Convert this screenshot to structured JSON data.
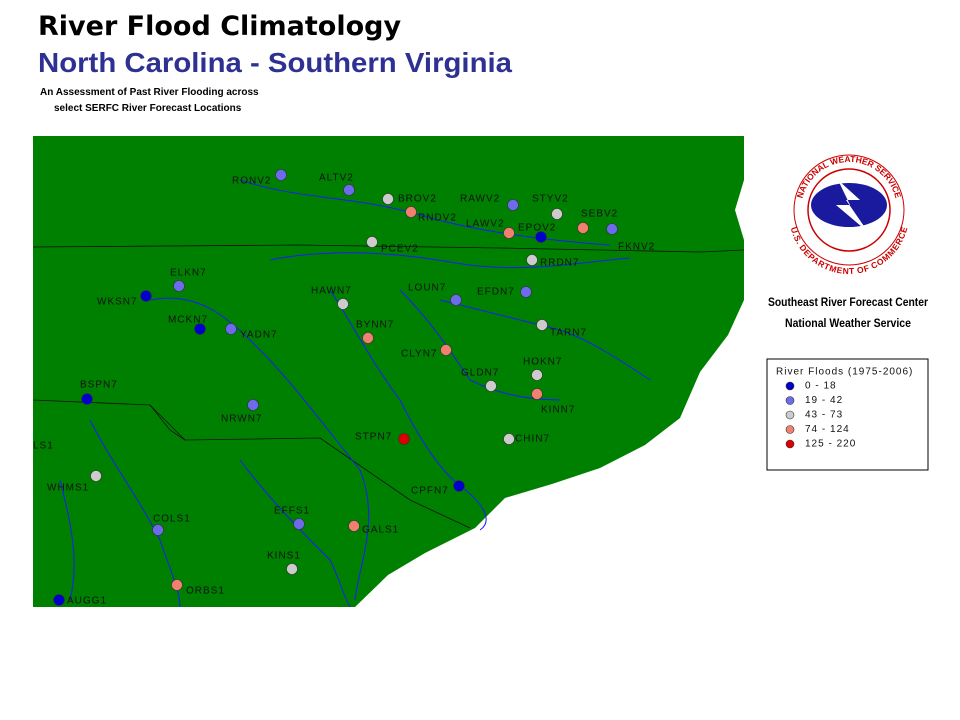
{
  "header": {
    "title": "River Flood Climatology",
    "subtitle": "North Carolina - Southern Virginia",
    "description_line1": "An Assessment of Past River Flooding across",
    "description_line2": "select SERFC River Forecast Locations"
  },
  "logo": {
    "top_text": "NATIONAL WEATHER SERVICE",
    "bottom_text": "U.S. DEPARTMENT OF COMMERCE"
  },
  "center": {
    "line1": "Southeast River Forecast Center",
    "line2": "National Weather Service"
  },
  "legend": {
    "title": "River Floods (1975-2006)",
    "items": [
      {
        "label": "0 - 18",
        "color": "#0000cc"
      },
      {
        "label": "19 - 42",
        "color": "#6b6bec"
      },
      {
        "label": "43 - 73",
        "color": "#cccccc"
      },
      {
        "label": "74 - 124",
        "color": "#f08070"
      },
      {
        "label": "125 - 220",
        "color": "#dd0000"
      }
    ]
  },
  "partial_labels": [
    "LS1"
  ],
  "stations": [
    {
      "name": "RONV2",
      "color": "#6b6bec"
    },
    {
      "name": "ALTV2",
      "color": "#6b6bec"
    },
    {
      "name": "BROV2",
      "color": "#cccccc"
    },
    {
      "name": "RNDV2",
      "color": "#f08070"
    },
    {
      "name": "RAWV2",
      "color": "#6b6bec"
    },
    {
      "name": "STYV2",
      "color": "#cccccc"
    },
    {
      "name": "SEBV2",
      "color": "#f08070"
    },
    {
      "name": "LAWV2",
      "color": "#f08070"
    },
    {
      "name": "EPOV2",
      "color": "#0000cc"
    },
    {
      "name": "FKNV2",
      "color": "#6b6bec"
    },
    {
      "name": "PCEV2",
      "color": "#cccccc"
    },
    {
      "name": "RRDN7",
      "color": "#cccccc"
    },
    {
      "name": "ELKN7",
      "color": "#6b6bec"
    },
    {
      "name": "WKSN7",
      "color": "#0000cc"
    },
    {
      "name": "HAWN7",
      "color": "#cccccc"
    },
    {
      "name": "LOUN7",
      "color": "#6b6bec"
    },
    {
      "name": "EFDN7",
      "color": "#6b6bec"
    },
    {
      "name": "MCKN7",
      "color": "#0000cc"
    },
    {
      "name": "YADN7",
      "color": "#6b6bec"
    },
    {
      "name": "BYNN7",
      "color": "#f08070"
    },
    {
      "name": "TARN7",
      "color": "#cccccc"
    },
    {
      "name": "CLYN7",
      "color": "#f08070"
    },
    {
      "name": "HOKN7",
      "color": "#cccccc"
    },
    {
      "name": "GLDN7",
      "color": "#cccccc"
    },
    {
      "name": "BSPN7",
      "color": "#0000cc"
    },
    {
      "name": "KINN7",
      "color": "#f08070"
    },
    {
      "name": "NRWN7",
      "color": "#6b6bec"
    },
    {
      "name": "STPN7",
      "color": "#dd0000"
    },
    {
      "name": "CHIN7",
      "color": "#cccccc"
    },
    {
      "name": "WHMS1",
      "color": "#cccccc"
    },
    {
      "name": "CPFN7",
      "color": "#0000cc"
    },
    {
      "name": "EFFS1",
      "color": "#6b6bec"
    },
    {
      "name": "COLS1",
      "color": "#6b6bec"
    },
    {
      "name": "GALS1",
      "color": "#f08070"
    },
    {
      "name": "KINS1",
      "color": "#cccccc"
    },
    {
      "name": "ORBS1",
      "color": "#f08070"
    },
    {
      "name": "AUGG1",
      "color": "#0000cc"
    }
  ]
}
